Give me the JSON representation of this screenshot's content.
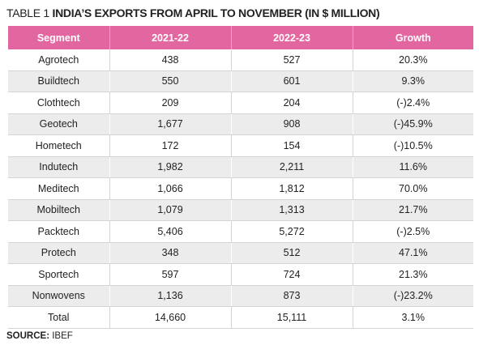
{
  "title": {
    "label": "TABLE 1",
    "text": "INDIA’S EXPORTS FROM APRIL TO NOVEMBER (IN $ MILLION)"
  },
  "table": {
    "header": [
      "Segment",
      "2021-22",
      "2022-23",
      "Growth"
    ],
    "rows": [
      [
        "Agrotech",
        "438",
        "527",
        "20.3%"
      ],
      [
        "Buildtech",
        "550",
        "601",
        "9.3%"
      ],
      [
        "Clothtech",
        "209",
        "204",
        "(-)2.4%"
      ],
      [
        "Geotech",
        "1,677",
        "908",
        "(-)45.9%"
      ],
      [
        "Hometech",
        "172",
        "154",
        "(-)10.5%"
      ],
      [
        "Indutech",
        "1,982",
        "2,211",
        "11.6%"
      ],
      [
        "Meditech",
        "1,066",
        "1,812",
        "70.0%"
      ],
      [
        "Mobiltech",
        "1,079",
        "1,313",
        "21.7%"
      ],
      [
        "Packtech",
        "5,406",
        "5,272",
        "(-)2.5%"
      ],
      [
        "Protech",
        "348",
        "512",
        "47.1%"
      ],
      [
        "Sportech",
        "597",
        "724",
        "21.3%"
      ],
      [
        "Nonwovens",
        "1,136",
        "873",
        "(-)23.2%"
      ],
      [
        "Total",
        "14,660",
        "15,111",
        "3.1%"
      ]
    ]
  },
  "source": {
    "label": "SOURCE:",
    "text": "IBEF"
  }
}
